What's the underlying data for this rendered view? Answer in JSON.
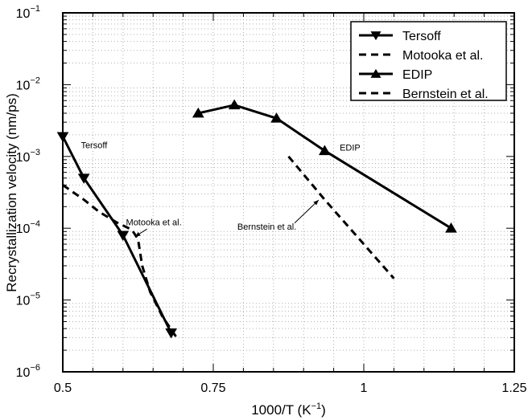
{
  "chart_data": {
    "type": "line",
    "xlabel": "1000/T (K",
    "xlabel_sup": "−1",
    "xlabel_end": ")",
    "ylabel": "Recrystallization velocity (nm/ps)",
    "xlim": [
      0.5,
      1.25
    ],
    "ylim_log10": [
      -6,
      -1
    ],
    "y_scale": "log",
    "grid": true,
    "legend_position": "top-right",
    "xticks": [
      {
        "value": 0.5,
        "label": "0.5"
      },
      {
        "value": 0.75,
        "label": "0.75"
      },
      {
        "value": 1.0,
        "label": "1"
      },
      {
        "value": 1.25,
        "label": "1.25"
      }
    ],
    "yticks": [
      {
        "exp": -6,
        "base": "10",
        "sup": "−6"
      },
      {
        "exp": -5,
        "base": "10",
        "sup": "−5"
      },
      {
        "exp": -4,
        "base": "10",
        "sup": "−4"
      },
      {
        "exp": -3,
        "base": "10",
        "sup": "−3"
      },
      {
        "exp": -2,
        "base": "10",
        "sup": "−2"
      },
      {
        "exp": -1,
        "base": "10",
        "sup": "−1"
      }
    ],
    "series": [
      {
        "name": "Tersoff",
        "style": "solid",
        "marker": "triangle-down",
        "x": [
          0.5,
          0.535,
          0.6,
          0.68
        ],
        "y": [
          0.0019,
          0.0005,
          8e-05,
          3.5e-06
        ]
      },
      {
        "name": "Motooka et al.",
        "style": "dashed",
        "marker": "none",
        "x": [
          0.5,
          0.535,
          0.56,
          0.59,
          0.615,
          0.625,
          0.632,
          0.645,
          0.665,
          0.688
        ],
        "y": [
          0.0004,
          0.00025,
          0.00017,
          0.00012,
          9.5e-05,
          7e-05,
          3e-05,
          1.3e-05,
          6e-06,
          3.1e-06
        ]
      },
      {
        "name": "EDIP",
        "style": "solid",
        "marker": "triangle-up",
        "x": [
          0.725,
          0.785,
          0.855,
          0.935,
          1.145
        ],
        "y": [
          0.004,
          0.0052,
          0.0034,
          0.0012,
          0.0001
        ]
      },
      {
        "name": "Bernstein et al.",
        "style": "dashed",
        "marker": "none",
        "x": [
          0.875,
          0.935,
          1.05
        ],
        "y": [
          0.001,
          0.00025,
          2e-05
        ]
      }
    ],
    "annotations": [
      {
        "text": "Tersoff",
        "x": 0.53,
        "y": 0.0013
      },
      {
        "text": "Motooka et al.",
        "x": 0.605,
        "y": 0.00011,
        "arrow_to": [
          0.62,
          7.65e-05
        ],
        "arrow_from": [
          0.64,
          9.75e-05
        ]
      },
      {
        "text": "EDIP",
        "x": 0.96,
        "y": 0.0012
      },
      {
        "text": "Bernstein et al.",
        "x": 0.79,
        "y": 9.5e-05,
        "arrow_to": [
          0.925,
          0.000247
        ],
        "arrow_from": [
          0.885,
          0.000118
        ]
      }
    ]
  }
}
